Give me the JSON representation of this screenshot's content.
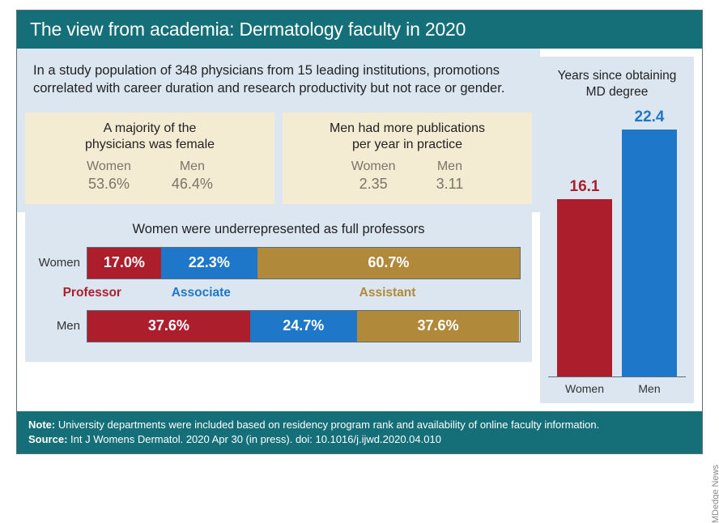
{
  "title": "The view from academia: Dermatology faculty in 2020",
  "intro": "In a study population of 348 physicians from 15 leading institutions, promotions correlated with career duration and research productivity but not race or gender.",
  "colors": {
    "teal": "#146f78",
    "light_blue": "#dbe6f1",
    "cream": "#f4ebd3",
    "red": "#ad1e2c",
    "blue": "#1f77c9",
    "gold": "#b0893a",
    "gray_text": "#7a7568"
  },
  "stat_boxes": [
    {
      "title_line1": "A majority of the",
      "title_line2": "physicians was female",
      "items": [
        {
          "label": "Women",
          "value": "53.6%"
        },
        {
          "label": "Men",
          "value": "46.4%"
        }
      ]
    },
    {
      "title_line1": "Men had more publications",
      "title_line2": "per year in practice",
      "items": [
        {
          "label": "Women",
          "value": "2.35"
        },
        {
          "label": "Men",
          "value": "3.11"
        }
      ]
    }
  ],
  "prof": {
    "title": "Women were underrepresented as full professors",
    "rows": [
      {
        "label": "Women",
        "segments": [
          {
            "pct": 17.0,
            "text": "17.0%",
            "color": "#ad1e2c"
          },
          {
            "pct": 22.3,
            "text": "22.3%",
            "color": "#1f77c9"
          },
          {
            "pct": 60.7,
            "text": "60.7%",
            "color": "#b0893a"
          }
        ]
      },
      {
        "label": "Men",
        "segments": [
          {
            "pct": 37.6,
            "text": "37.6%",
            "color": "#ad1e2c"
          },
          {
            "pct": 24.7,
            "text": "24.7%",
            "color": "#1f77c9"
          },
          {
            "pct": 37.6,
            "text": "37.6%",
            "color": "#b0893a"
          }
        ]
      }
    ],
    "legend": [
      {
        "text": "Professor",
        "color": "#ad1e2c",
        "left_pct": 0,
        "width_pct": 23
      },
      {
        "text": "Associate",
        "color": "#1f77c9",
        "left_pct": 23,
        "width_pct": 22
      },
      {
        "text": "Assistant",
        "color": "#b0893a",
        "left_pct": 45,
        "width_pct": 55
      }
    ]
  },
  "years": {
    "title_line1": "Years since obtaining",
    "title_line2": "MD degree",
    "ymax": 25,
    "bars": [
      {
        "label": "Women",
        "value": 16.1,
        "color": "#ad1e2c",
        "text_color": "#ad1e2c"
      },
      {
        "label": "Men",
        "value": 22.4,
        "color": "#1f77c9",
        "text_color": "#1f77c9"
      }
    ]
  },
  "footer": {
    "note_label": "Note:",
    "note_text": " University departments were included based on residency program rank and availability of online faculty information.",
    "source_label": "Source:",
    "source_text": " Int J Womens Dermatol. 2020 Apr 30 (in press). doi: 10.1016/j.ijwd.2020.04.010"
  },
  "credit": "MDedge News"
}
